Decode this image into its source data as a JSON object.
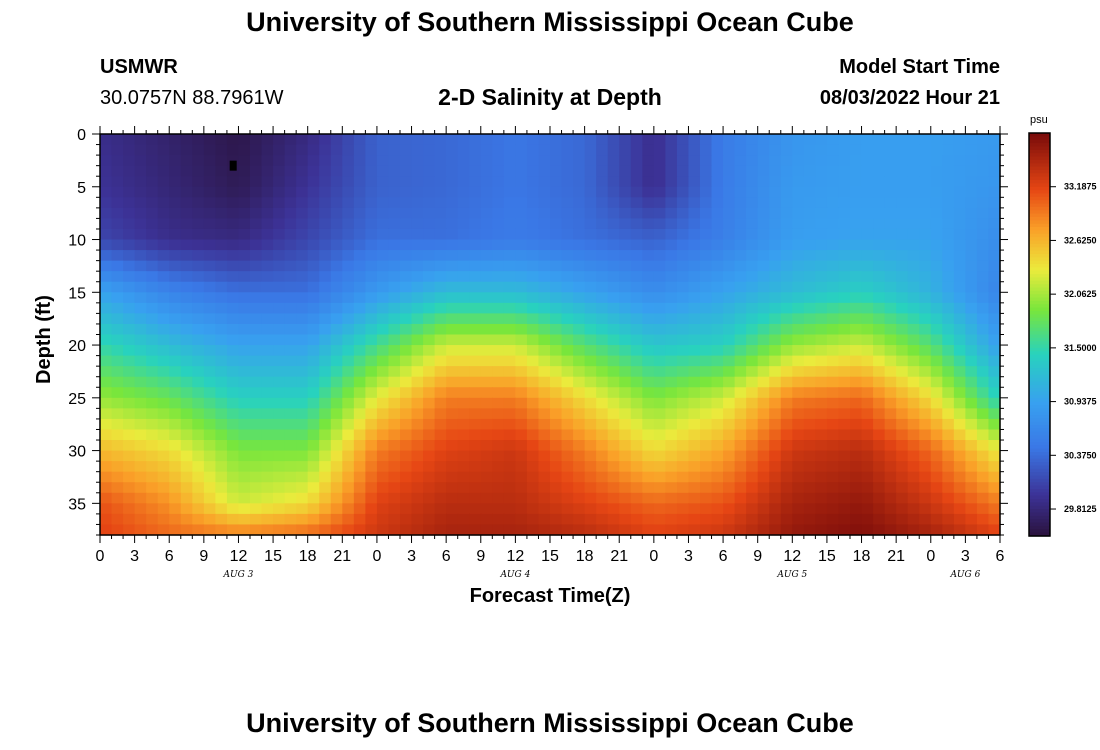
{
  "header": {
    "title_top": "University of Southern Mississippi Ocean Cube",
    "title_bottom": "University of Southern Mississippi Ocean Cube",
    "station_code": "USMWR",
    "station_coords": "30.0757N  88.7961W",
    "chart_subtitle": "2-D Salinity at Depth",
    "model_start_label": "Model Start Time",
    "model_start_value": "08/03/2022 Hour 21"
  },
  "chart_data": {
    "type": "heatmap",
    "title": "2-D Salinity at Depth",
    "xlabel": "Forecast Time(Z)",
    "ylabel": "Depth (ft)",
    "x_range_hours": [
      0,
      78
    ],
    "y_range": [
      0,
      38
    ],
    "y_ticks": [
      0,
      5,
      10,
      15,
      20,
      25,
      30,
      35
    ],
    "x_tick_labels": [
      "0",
      "3",
      "6",
      "9",
      "12",
      "15",
      "18",
      "21",
      "0",
      "3",
      "6",
      "9",
      "12",
      "15",
      "18",
      "21",
      "0",
      "3",
      "6",
      "9",
      "12",
      "15",
      "18",
      "21",
      "0",
      "3",
      "6"
    ],
    "day_labels": [
      {
        "label": "AUG 3",
        "hour": 12
      },
      {
        "label": "AUG 4",
        "hour": 36
      },
      {
        "label": "AUG 5",
        "hour": 60
      },
      {
        "label": "AUG 6",
        "hour": 75
      }
    ],
    "colorbar": {
      "unit": "psu",
      "min": 29.53,
      "max": 33.75,
      "ticks": [
        33.1875,
        32.625,
        32.0625,
        31.5,
        30.9375,
        30.375,
        29.8125
      ],
      "tick_labels": [
        "33.1875",
        "32.6250",
        "32.0625",
        "31.5000",
        "30.9375",
        "30.3750",
        "29.8125"
      ]
    },
    "field": {
      "depth_levels_ft": [
        0,
        5,
        10,
        15,
        20,
        25,
        30,
        35,
        38
      ],
      "hours": [
        0,
        6,
        12,
        18,
        24,
        30,
        36,
        42,
        48,
        54,
        60,
        66,
        72,
        78
      ],
      "values": [
        [
          29.9,
          29.75,
          29.6,
          29.85,
          30.3,
          30.35,
          30.45,
          30.35,
          29.9,
          30.5,
          30.8,
          30.9,
          30.9,
          30.85
        ],
        [
          29.95,
          29.8,
          29.65,
          29.95,
          30.3,
          30.35,
          30.45,
          30.35,
          29.9,
          30.5,
          30.85,
          30.9,
          30.9,
          30.8
        ],
        [
          30.1,
          29.9,
          29.85,
          30.1,
          30.4,
          30.4,
          30.5,
          30.4,
          30.3,
          30.55,
          30.9,
          30.95,
          30.95,
          30.7
        ],
        [
          30.95,
          30.6,
          30.4,
          30.4,
          30.85,
          31.2,
          31.2,
          30.95,
          30.7,
          30.95,
          31.2,
          31.4,
          31.1,
          30.6
        ],
        [
          31.5,
          31.2,
          30.95,
          30.95,
          31.6,
          32.2,
          32.2,
          31.7,
          31.3,
          31.4,
          32.0,
          32.2,
          31.7,
          30.9
        ],
        [
          32.0,
          31.8,
          31.4,
          31.4,
          32.3,
          32.9,
          32.9,
          32.4,
          31.9,
          32.2,
          32.9,
          33.0,
          32.4,
          31.4
        ],
        [
          32.6,
          32.4,
          31.9,
          31.9,
          32.9,
          33.2,
          33.3,
          32.9,
          32.4,
          32.7,
          33.3,
          33.4,
          33.0,
          32.3
        ],
        [
          33.1,
          32.8,
          32.2,
          32.4,
          33.2,
          33.4,
          33.4,
          33.2,
          33.0,
          33.1,
          33.5,
          33.6,
          33.3,
          32.9
        ],
        [
          33.2,
          33.0,
          32.9,
          33.0,
          33.3,
          33.5,
          33.5,
          33.4,
          33.2,
          33.3,
          33.6,
          33.7,
          33.5,
          33.2
        ]
      ]
    },
    "marker": {
      "hour": 11.5,
      "depth_ft": 3
    }
  }
}
